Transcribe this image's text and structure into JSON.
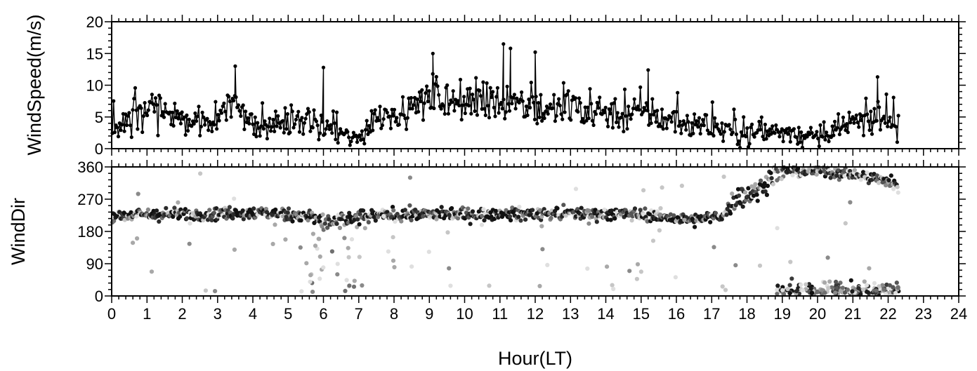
{
  "chart_data": [
    {
      "type": "line",
      "ylabel": "WindSpeed(m/s)",
      "xlim": [
        0,
        24
      ],
      "ylim": [
        0,
        20
      ],
      "yticks": [
        0,
        5,
        10,
        15,
        20
      ],
      "series_color": "#000000",
      "markers": true,
      "x": [
        0.0,
        0.5,
        1.0,
        1.5,
        2.0,
        2.5,
        3.0,
        3.5,
        4.0,
        4.5,
        5.0,
        5.5,
        6.0,
        6.5,
        7.0,
        7.5,
        8.0,
        8.5,
        9.0,
        9.5,
        10.0,
        10.5,
        11.0,
        11.5,
        12.0,
        12.5,
        13.0,
        13.5,
        14.0,
        14.5,
        15.0,
        15.5,
        16.0,
        16.5,
        17.0,
        17.5,
        18.0,
        18.5,
        19.0,
        19.5,
        20.0,
        20.5,
        21.0,
        21.5,
        22.0,
        22.3
      ],
      "y": [
        3.5,
        4.5,
        6.5,
        5.5,
        4.5,
        4.0,
        5.0,
        7.5,
        3.5,
        3.5,
        4.5,
        4.5,
        3.0,
        2.0,
        1.5,
        5.5,
        5.5,
        6.0,
        8.0,
        7.5,
        7.0,
        7.0,
        7.5,
        7.0,
        6.5,
        6.0,
        6.5,
        6.0,
        6.0,
        5.5,
        6.0,
        5.0,
        4.0,
        4.0,
        3.5,
        3.0,
        2.0,
        2.5,
        3.0,
        2.0,
        1.5,
        2.5,
        4.0,
        4.5,
        4.0,
        4.0
      ],
      "peaks": [
        {
          "x": 3.5,
          "y": 13.0
        },
        {
          "x": 6.0,
          "y": 12.8
        },
        {
          "x": 9.1,
          "y": 15.0
        },
        {
          "x": 11.1,
          "y": 16.5
        },
        {
          "x": 11.3,
          "y": 15.8
        },
        {
          "x": 12.0,
          "y": 15.2
        },
        {
          "x": 15.2,
          "y": 12.4
        },
        {
          "x": 21.7,
          "y": 11.3
        }
      ]
    },
    {
      "type": "scatter",
      "ylabel": "WindDir",
      "xlabel": "Hour(LT)",
      "xlim": [
        0,
        24
      ],
      "ylim": [
        0,
        360
      ],
      "yticks": [
        0,
        90,
        180,
        270,
        360
      ],
      "xticks": [
        0,
        1,
        2,
        3,
        4,
        5,
        6,
        7,
        8,
        9,
        10,
        11,
        12,
        13,
        14,
        15,
        16,
        17,
        18,
        19,
        20,
        21,
        22,
        23,
        24
      ],
      "point_color_scale": "grayscale",
      "main_band": [
        {
          "x": 0.0,
          "y": 225
        },
        {
          "x": 2.0,
          "y": 228
        },
        {
          "x": 4.0,
          "y": 232
        },
        {
          "x": 5.5,
          "y": 225
        },
        {
          "x": 6.0,
          "y": 205
        },
        {
          "x": 6.7,
          "y": 210
        },
        {
          "x": 7.5,
          "y": 225
        },
        {
          "x": 9.0,
          "y": 228
        },
        {
          "x": 11.0,
          "y": 228
        },
        {
          "x": 13.0,
          "y": 230
        },
        {
          "x": 15.0,
          "y": 228
        },
        {
          "x": 16.5,
          "y": 210
        },
        {
          "x": 17.3,
          "y": 225
        },
        {
          "x": 17.7,
          "y": 275
        },
        {
          "x": 18.3,
          "y": 290
        },
        {
          "x": 18.8,
          "y": 345
        },
        {
          "x": 20.0,
          "y": 350
        },
        {
          "x": 21.0,
          "y": 340
        },
        {
          "x": 22.0,
          "y": 320
        },
        {
          "x": 22.3,
          "y": 300
        }
      ],
      "low_cluster": {
        "x_range": [
          18.8,
          22.3
        ],
        "y_range": [
          5,
          60
        ]
      }
    }
  ]
}
